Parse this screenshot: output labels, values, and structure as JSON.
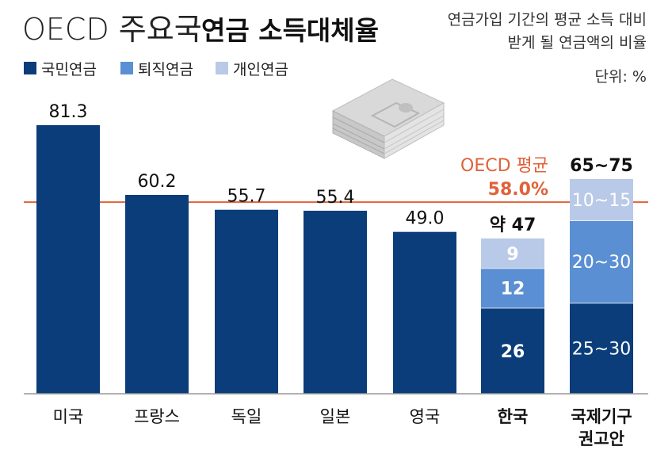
{
  "chart_data": {
    "type": "bar",
    "title_light": "OECD 주요국",
    "title_bold": "연금 소득대체율",
    "subtitle": [
      "연금가입 기간의 평균 소득 대비",
      "받게 될 연금액의 비율"
    ],
    "unit": "단위: %",
    "legend": [
      {
        "name": "국민연금",
        "color": "#0b3d7a"
      },
      {
        "name": "퇴직연금",
        "color": "#5b8fd4"
      },
      {
        "name": "개인연금",
        "color": "#b9c9e8"
      }
    ],
    "categories": [
      "미국",
      "프랑스",
      "독일",
      "일본",
      "영국",
      "한국",
      "국제기구 권고안"
    ],
    "single": [
      {
        "category": "미국",
        "value": 81.3,
        "label": "81.3"
      },
      {
        "category": "프랑스",
        "value": 60.2,
        "label": "60.2"
      },
      {
        "category": "독일",
        "value": 55.7,
        "label": "55.7"
      },
      {
        "category": "일본",
        "value": 55.4,
        "label": "55.4"
      },
      {
        "category": "영국",
        "value": 49.0,
        "label": "49.0"
      }
    ],
    "korea": {
      "total_label": "약 47",
      "segments": [
        {
          "series": "국민연금",
          "value": 26,
          "label": "26"
        },
        {
          "series": "퇴직연금",
          "value": 12,
          "label": "12"
        },
        {
          "series": "개인연금",
          "value": 9,
          "label": "9"
        }
      ]
    },
    "recommended": {
      "total_label": "65~75",
      "segments": [
        {
          "series": "국민연금",
          "value": 27.5,
          "label": "25~30"
        },
        {
          "series": "퇴직연금",
          "value": 25,
          "label": "20~30"
        },
        {
          "series": "개인연금",
          "value": 12.5,
          "label": "10~15"
        }
      ]
    },
    "reference_line": {
      "value": 58.0,
      "label_line1": "OECD 평균",
      "label_line2": "58.0%",
      "color": "#e0623a"
    },
    "ylim": [
      0,
      86
    ]
  }
}
